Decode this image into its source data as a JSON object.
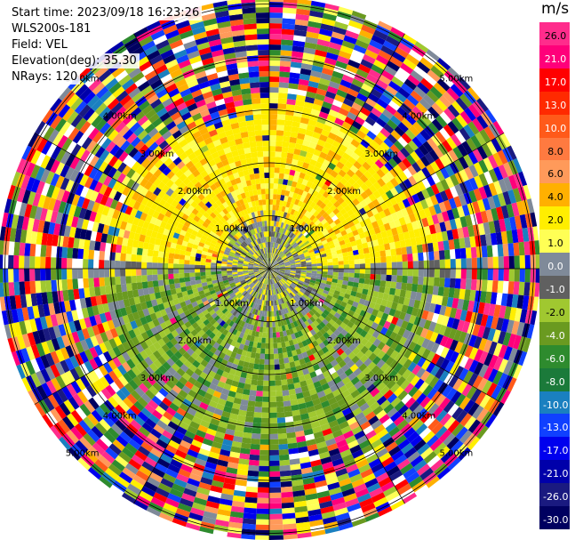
{
  "header": {
    "start_time": "Start time: 2023/09/18 16:23:26",
    "site": "WLS200s-181",
    "field": "Field: VEL",
    "elevation": "Elevation(deg): 35.30",
    "nrays": "NRays: 120"
  },
  "chart_data": {
    "type": "heatmap",
    "projection": "polar (PPI)",
    "field": "VEL",
    "rays": 120,
    "range_ring_labels": [
      "1.00km",
      "2.00km",
      "3.00km",
      "4.00km",
      "5.00km"
    ],
    "range_rings_km": [
      1,
      2,
      3,
      4,
      5
    ],
    "colorbar": {
      "unit": "m/s",
      "tick_labels": [
        "26.0",
        "21.0",
        "17.0",
        "13.0",
        "10.0",
        "8.0",
        "6.0",
        "4.0",
        "2.0",
        "1.0",
        "0.0",
        "-1.0",
        "-2.0",
        "-4.0",
        "-6.0",
        "-8.0",
        "-10.0",
        "-13.0",
        "-17.0",
        "-21.0",
        "-26.0",
        "-30.0"
      ],
      "colors": [
        "#ff2c8c",
        "#ff007a",
        "#ff0000",
        "#ff2a00",
        "#ff5a1a",
        "#ff7a40",
        "#ff9a5a",
        "#ffb000",
        "#ffee00",
        "#ffff55",
        "#7f8a99",
        "#606060",
        "#a0c830",
        "#6a9a20",
        "#2e8b2e",
        "#1b7a3a",
        "#1a80c0",
        "#1040ff",
        "#0000ee",
        "#0000aa",
        "#1a1a80",
        "#000060"
      ]
    },
    "regions": [
      {
        "range_km": [
          0,
          0.6
        ],
        "velocity": "mixed gray/green (-1 to 1 m/s)"
      },
      {
        "range_km": [
          1,
          3
        ],
        "direction": "north half",
        "velocity": "yellow (2 to 4 m/s)"
      },
      {
        "range_km": [
          1,
          3
        ],
        "direction": "south half",
        "velocity": "green (-2 to -6 m/s)"
      },
      {
        "range_km": [
          3,
          5.5
        ],
        "velocity": "noise (all colors)"
      }
    ]
  }
}
